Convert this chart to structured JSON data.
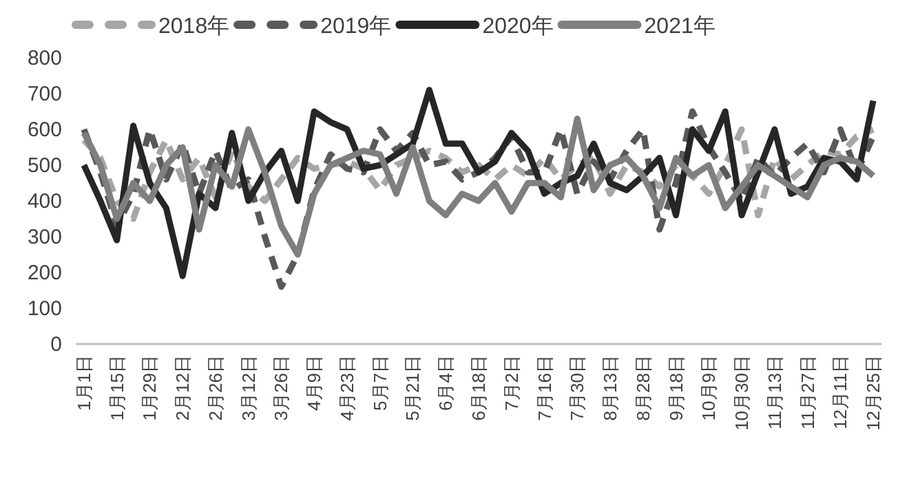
{
  "chart_data": {
    "type": "line",
    "categories": [
      "1月1日",
      null,
      "1月15日",
      null,
      "1月29日",
      null,
      "2月12日",
      null,
      "2月26日",
      null,
      "3月12日",
      null,
      "3月26日",
      null,
      "4月9日",
      null,
      "4月23日",
      null,
      "5月7日",
      null,
      "5月21日",
      null,
      "6月4日",
      null,
      "6月18日",
      null,
      "7月2日",
      null,
      "7月16日",
      null,
      "7月30日",
      null,
      "8月13日",
      null,
      "8月28日",
      null,
      "9月18日",
      null,
      "10月9日",
      null,
      "10月30日",
      null,
      "11月13日",
      null,
      "11月27日",
      null,
      "12月11日",
      null,
      "12月25日"
    ],
    "series": [
      {
        "name": "2018年",
        "color": "#a6a6a6",
        "line_style": "dashed",
        "values": [
          570,
          520,
          400,
          350,
          480,
          570,
          460,
          520,
          410,
          540,
          440,
          400,
          460,
          520,
          490,
          500,
          510,
          490,
          430,
          500,
          520,
          540,
          520,
          480,
          500,
          460,
          500,
          470,
          520,
          460,
          500,
          520,
          420,
          500,
          480,
          440,
          500,
          470,
          420,
          500,
          600,
          360,
          520,
          460,
          500,
          540,
          530,
          580,
          600
        ]
      },
      {
        "name": "2019年",
        "color": "#595959",
        "line_style": "dashed",
        "values": [
          600,
          480,
          330,
          420,
          600,
          460,
          560,
          420,
          540,
          430,
          460,
          300,
          160,
          250,
          430,
          530,
          490,
          480,
          600,
          540,
          590,
          500,
          510,
          460,
          480,
          520,
          580,
          480,
          480,
          600,
          420,
          510,
          460,
          540,
          600,
          320,
          450,
          650,
          550,
          480,
          400,
          520,
          470,
          520,
          560,
          480,
          600,
          480,
          580
        ]
      },
      {
        "name": "2020年",
        "color": "#262626",
        "line_style": "solid",
        "values": [
          500,
          400,
          290,
          610,
          450,
          380,
          190,
          420,
          380,
          590,
          400,
          480,
          540,
          400,
          650,
          620,
          600,
          490,
          500,
          530,
          560,
          710,
          560,
          560,
          480,
          510,
          590,
          540,
          420,
          450,
          470,
          560,
          450,
          430,
          470,
          520,
          360,
          600,
          540,
          650,
          360,
          480,
          600,
          420,
          440,
          520,
          510,
          460,
          680
        ]
      },
      {
        "name": "2021年",
        "color": "#7f7f7f",
        "line_style": "solid",
        "values": [
          590,
          500,
          350,
          450,
          400,
          500,
          550,
          320,
          500,
          440,
          600,
          480,
          330,
          250,
          420,
          500,
          520,
          540,
          530,
          420,
          550,
          400,
          360,
          420,
          400,
          450,
          370,
          450,
          450,
          410,
          630,
          430,
          500,
          520,
          470,
          380,
          520,
          470,
          500,
          380,
          440,
          500,
          470,
          440,
          410,
          500,
          520,
          510,
          470
        ]
      }
    ],
    "ylim": [
      0,
      800
    ],
    "yticks": [
      0,
      100,
      200,
      300,
      400,
      500,
      600,
      700,
      800
    ],
    "legend": "top",
    "grid": false,
    "marker": "none"
  }
}
